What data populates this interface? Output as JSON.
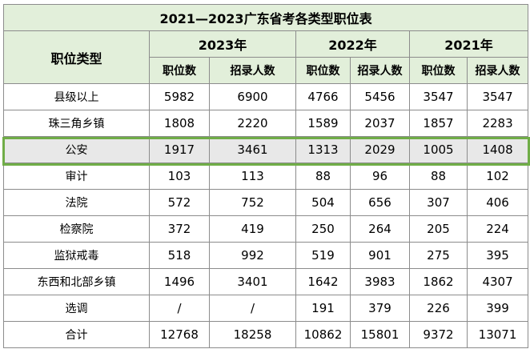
{
  "table": {
    "title": "2021—2023广东省考各类型职位表",
    "category_header": "职位类型",
    "years": [
      "2023年",
      "2022年",
      "2021年"
    ],
    "sub_headers": [
      "职位数",
      "招录人数"
    ],
    "rows": [
      {
        "category": "县级以上",
        "values": [
          "5982",
          "6900",
          "4766",
          "5456",
          "3547",
          "3547"
        ]
      },
      {
        "category": "珠三角乡镇",
        "values": [
          "1808",
          "2220",
          "1589",
          "2037",
          "1857",
          "2283"
        ]
      },
      {
        "category": "公安",
        "values": [
          "1917",
          "3461",
          "1313",
          "2029",
          "1005",
          "1408"
        ]
      },
      {
        "category": "审计",
        "values": [
          "103",
          "113",
          "88",
          "96",
          "88",
          "102"
        ]
      },
      {
        "category": "法院",
        "values": [
          "572",
          "752",
          "504",
          "656",
          "307",
          "406"
        ]
      },
      {
        "category": "检察院",
        "values": [
          "372",
          "419",
          "250",
          "264",
          "205",
          "224"
        ]
      },
      {
        "category": "监狱戒毒",
        "values": [
          "518",
          "992",
          "519",
          "901",
          "275",
          "395"
        ]
      },
      {
        "category": "东西和北部乡镇",
        "values": [
          "1496",
          "3401",
          "1642",
          "3983",
          "1862",
          "4307"
        ]
      },
      {
        "category": "选调",
        "values": [
          "/",
          "/",
          "191",
          "379",
          "226",
          "399"
        ]
      },
      {
        "category": "合计",
        "values": [
          "12768",
          "18258",
          "10862",
          "15801",
          "9372",
          "13071"
        ]
      }
    ],
    "highlight_color": "#70ad47",
    "header_color": "#e2efda"
  }
}
